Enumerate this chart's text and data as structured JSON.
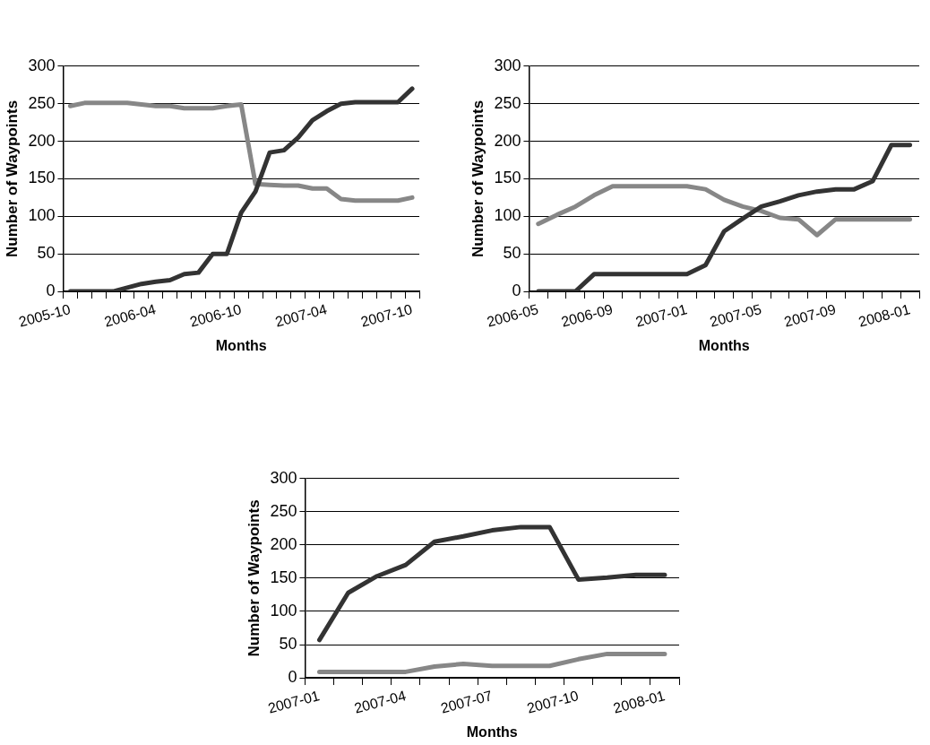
{
  "chart_data": [
    {
      "type": "line",
      "xlabel": "Months",
      "ylabel": "Number of Waypoints",
      "categories": [
        "2005-10",
        null,
        null,
        null,
        null,
        null,
        "2006-04",
        null,
        null,
        null,
        null,
        null,
        "2006-10",
        null,
        null,
        null,
        null,
        null,
        "2007-04",
        null,
        null,
        null,
        null,
        null,
        "2007-10"
      ],
      "series": [
        {
          "color": "#333333",
          "values": [
            0,
            0,
            0,
            0,
            5,
            10,
            13,
            15,
            23,
            25,
            50,
            50,
            105,
            133,
            185,
            188,
            205,
            228,
            240,
            250,
            252,
            252,
            252,
            252,
            270
          ]
        },
        {
          "color": "#878787",
          "values": [
            247,
            251,
            251,
            251,
            251,
            249,
            247,
            247,
            244,
            244,
            244,
            247,
            249,
            143,
            142,
            141,
            141,
            137,
            137,
            123,
            121,
            121,
            121,
            121,
            125
          ]
        }
      ],
      "ylim": [
        0,
        300
      ],
      "yticks": [
        0,
        50,
        100,
        150,
        200,
        250,
        300
      ],
      "grid": "y",
      "legend": false,
      "marker": "none",
      "line_style": "solid"
    },
    {
      "type": "line",
      "xlabel": "Months",
      "ylabel": "Number of Waypoints",
      "categories": [
        "2006-05",
        null,
        null,
        null,
        "2006-09",
        null,
        null,
        null,
        "2007-01",
        null,
        null,
        null,
        "2007-05",
        null,
        null,
        null,
        "2007-09",
        null,
        null,
        null,
        "2008-01"
      ],
      "series": [
        {
          "color": "#333333",
          "values": [
            0,
            0,
            0,
            23,
            23,
            23,
            23,
            23,
            23,
            35,
            80,
            97,
            113,
            120,
            128,
            133,
            136,
            136,
            147,
            195,
            195
          ]
        },
        {
          "color": "#878787",
          "values": [
            90,
            102,
            113,
            128,
            140,
            140,
            140,
            140,
            140,
            136,
            122,
            113,
            107,
            98,
            96,
            75,
            96,
            96,
            96,
            96,
            96
          ]
        }
      ],
      "ylim": [
        0,
        300
      ],
      "yticks": [
        0,
        50,
        100,
        150,
        200,
        250,
        300
      ],
      "grid": "y",
      "legend": false,
      "marker": "none",
      "line_style": "solid"
    },
    {
      "type": "line",
      "xlabel": "Months",
      "ylabel": "Number of Waypoints",
      "categories": [
        "2007-01",
        null,
        null,
        "2007-04",
        null,
        null,
        "2007-07",
        null,
        null,
        "2007-10",
        null,
        null,
        "2008-01"
      ],
      "series": [
        {
          "color": "#333333",
          "values": [
            57,
            128,
            153,
            170,
            205,
            213,
            222,
            227,
            227,
            148,
            151,
            155,
            155
          ]
        },
        {
          "color": "#878787",
          "values": [
            9,
            9,
            9,
            9,
            17,
            21,
            18,
            18,
            18,
            28,
            36,
            36,
            36
          ]
        }
      ],
      "ylim": [
        0,
        300
      ],
      "yticks": [
        0,
        50,
        100,
        150,
        200,
        250,
        300
      ],
      "grid": "y",
      "legend": false,
      "marker": "none",
      "line_style": "solid"
    }
  ]
}
